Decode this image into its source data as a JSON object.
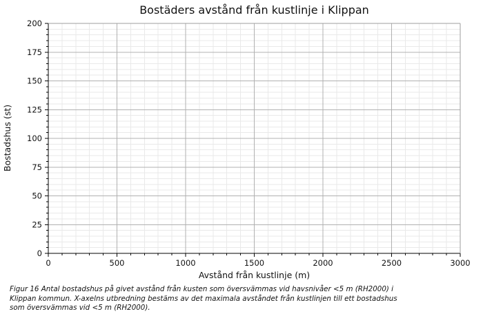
{
  "figure": {
    "title": "Bostäders avstånd från kustlinje i Klippan",
    "caption_lines": [
      "Figur 16 Antal bostadshus på givet avstånd från kusten som översvämmas vid havsnivåer <5 m (RH2000) i",
      "Klippan kommun. X-axelns utbredning bestäms av det maximala avståndet från kustlinjen till ett bostadshus",
      "som översvämmas vid <5 m (RH2000)."
    ]
  },
  "chart_data": {
    "type": "bar",
    "title": "Bostäders avstånd från kustlinje i Klippan",
    "xlabel": "Avstånd från kustlinje (m)",
    "ylabel": "Bostadshus (st)",
    "xlim": [
      0,
      3000
    ],
    "ylim": [
      0,
      200
    ],
    "xticks": [
      0,
      500,
      1000,
      1500,
      2000,
      2500,
      3000
    ],
    "yticks": [
      0,
      25,
      50,
      75,
      100,
      125,
      150,
      175,
      200
    ],
    "x_major_step": 500,
    "x_minor_step": 100,
    "y_major_step": 25,
    "y_minor_step": 5,
    "grid": "major+minor",
    "legend": "none",
    "series": [],
    "colors": {
      "grid_minor": "#e9e9e9",
      "grid_major": "#b0b0b0",
      "spine_dark": "#000000",
      "spine_light": "#9e9e9e",
      "tick": "#000000",
      "text": "#111111"
    }
  }
}
